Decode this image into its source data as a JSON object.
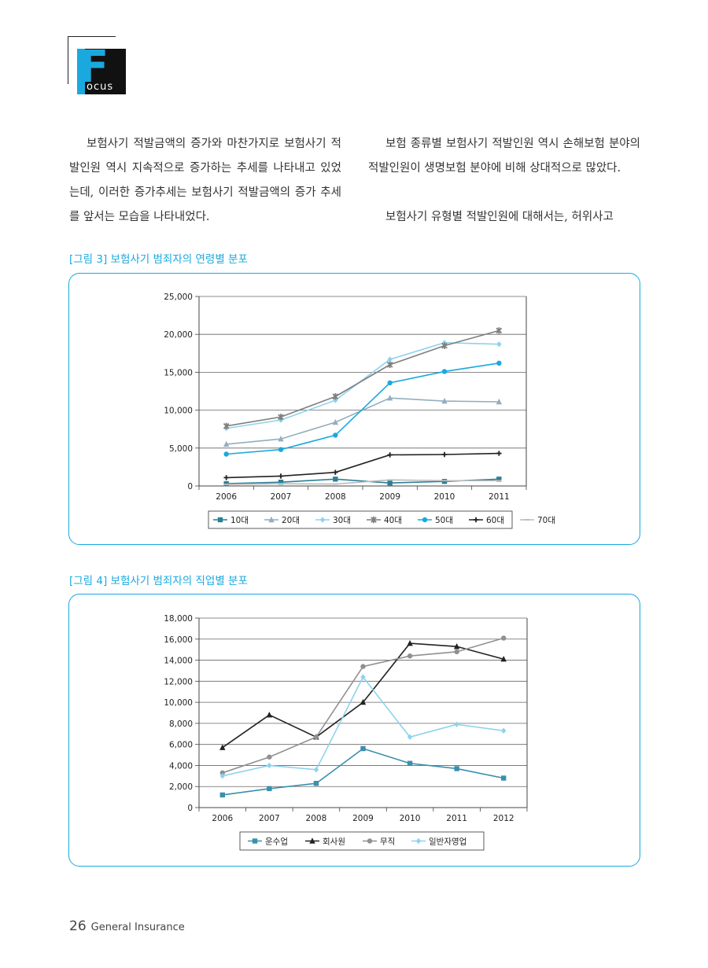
{
  "logo": {
    "letter": "F",
    "word": "ocus"
  },
  "body": {
    "left_paragraph": "보험사기 적발금액의 증가와 마찬가지로 보험사기 적발인원 역시 지속적으로 증가하는 추세를 나타내고 있었는데, 이러한 증가추세는 보험사기 적발금액의 증가 추세를 앞서는 모습을 나타내었다.",
    "right_paragraph_1": "보험 종류별 보험사기 적발인원 역시 손해보험 분야의 적발인원이 생명보험 분야에 비해 상대적으로 많았다.",
    "right_paragraph_2": "보험사기 유형별 적발인원에 대해서는, 허위사고"
  },
  "figures": {
    "fig3_title": "[그림 3] 보험사기 범죄자의 연령별 분포",
    "fig4_title": "[그림 4] 보험사기 범죄자의 직업별 분포"
  },
  "footer": {
    "page_number": "26",
    "publication": "General Insurance"
  },
  "chart_data": [
    {
      "type": "line",
      "x": [
        "2006",
        "2007",
        "2008",
        "2009",
        "2010",
        "2011"
      ],
      "ylim": [
        0,
        25000
      ],
      "yticks": [
        0,
        5000,
        10000,
        15000,
        20000,
        25000
      ],
      "ytick_labels": [
        "0",
        "5,000",
        "10,000",
        "15,000",
        "20,000",
        "25,000"
      ],
      "grid": true,
      "legend_position": "bottom",
      "series": [
        {
          "name": "10대",
          "values": [
            300,
            500,
            900,
            400,
            600,
            900
          ],
          "color": "#2c7f96",
          "marker": "square"
        },
        {
          "name": "20대",
          "values": [
            5500,
            6200,
            8400,
            11600,
            11200,
            11100
          ],
          "color": "#94aebe",
          "marker": "triangle"
        },
        {
          "name": "30대",
          "values": [
            7600,
            8700,
            11300,
            16700,
            18900,
            18700
          ],
          "color": "#8fd2ee",
          "marker": "diamond"
        },
        {
          "name": "40대",
          "values": [
            7900,
            9100,
            11800,
            16000,
            18500,
            20500
          ],
          "color": "#7f7f7f",
          "marker": "star"
        },
        {
          "name": "50대",
          "values": [
            4200,
            4800,
            6700,
            13600,
            15100,
            16200
          ],
          "color": "#19a9df",
          "marker": "circle"
        },
        {
          "name": "60대",
          "values": [
            1100,
            1300,
            1800,
            4100,
            4150,
            4300
          ],
          "color": "#222222",
          "marker": "plus"
        },
        {
          "name": "70대",
          "values": [
            200,
            300,
            250,
            800,
            700,
            700
          ],
          "color": "#bbbbbb",
          "marker": "dash"
        }
      ]
    },
    {
      "type": "line",
      "x": [
        "2006",
        "2007",
        "2008",
        "2009",
        "2010",
        "2011",
        "2012"
      ],
      "ylim": [
        0,
        18000
      ],
      "yticks": [
        0,
        2000,
        4000,
        6000,
        8000,
        10000,
        12000,
        14000,
        16000,
        18000
      ],
      "ytick_labels": [
        "0",
        "2,000",
        "4,000",
        "6,000",
        "8,000",
        "10,000",
        "12,000",
        "14,000",
        "16,000",
        "18,000"
      ],
      "grid": true,
      "legend_position": "bottom",
      "series": [
        {
          "name": "운수업",
          "values": [
            1200,
            1800,
            2300,
            5600,
            4200,
            3700,
            2800
          ],
          "color": "#3a8fad",
          "marker": "square"
        },
        {
          "name": "회사원",
          "values": [
            5700,
            8800,
            6700,
            10000,
            15600,
            15300,
            14100
          ],
          "color": "#222222",
          "marker": "triangle"
        },
        {
          "name": "무직",
          "values": [
            3300,
            4800,
            6700,
            13400,
            14400,
            14800,
            16100
          ],
          "color": "#909090",
          "marker": "circle"
        },
        {
          "name": "일반자영업",
          "values": [
            3000,
            4000,
            3600,
            12400,
            6700,
            7900,
            7300
          ],
          "color": "#8fd2ee",
          "marker": "diamond"
        }
      ]
    }
  ]
}
